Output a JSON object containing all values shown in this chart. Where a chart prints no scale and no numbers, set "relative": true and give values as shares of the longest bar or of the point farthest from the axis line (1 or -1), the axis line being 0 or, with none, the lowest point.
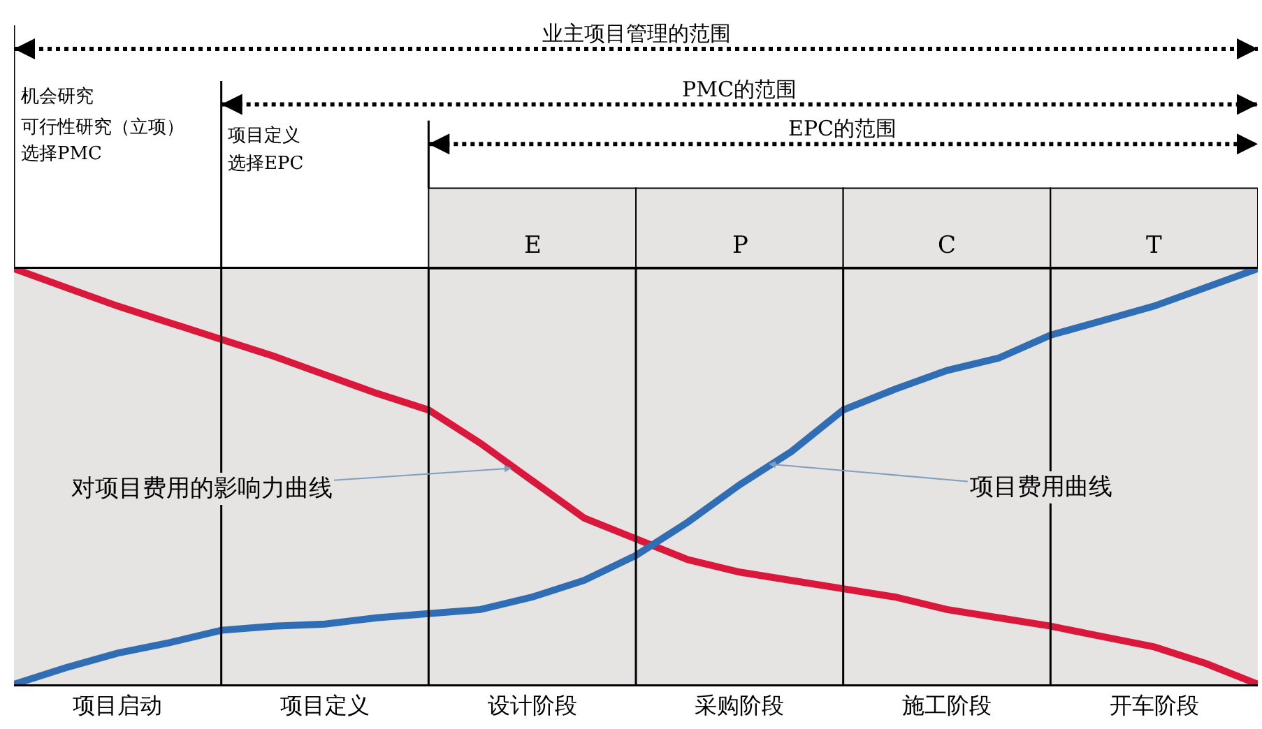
{
  "chart_data": {
    "type": "line",
    "relative": true,
    "grid": "x",
    "marker": "none",
    "line_style": "solid",
    "categories": [
      null,
      null,
      "项目启动",
      null,
      null,
      null,
      "项目定义",
      null,
      null,
      null,
      "设计阶段",
      null,
      null,
      null,
      "采购阶段",
      null,
      null,
      null,
      "施工阶段",
      null,
      null,
      null,
      "开车阶段",
      null,
      null
    ],
    "series": [
      {
        "color": "#d9183b",
        "values": [
          1,
          0.955,
          0.91,
          0.87,
          0.83,
          0.79,
          0.745,
          0.7,
          0.66,
          0.58,
          0.49,
          0.4,
          0.35,
          0.3,
          0.27,
          0.25,
          0.23,
          0.21,
          0.18,
          0.16,
          0.14,
          0.115,
          0.09,
          0.05,
          0
        ]
      },
      {
        "color": "#2f6db5",
        "values": [
          0,
          0.04,
          0.075,
          0.1,
          0.13,
          0.14,
          0.145,
          0.16,
          0.17,
          0.18,
          0.21,
          0.25,
          0.31,
          0.39,
          0.48,
          0.56,
          0.66,
          0.71,
          0.755,
          0.785,
          0.84,
          0.875,
          0.91,
          0.955,
          1
        ]
      }
    ],
    "annotations": [
      "业主项目管理的范围",
      "PMC的范围",
      "EPC的范围",
      "机会研究",
      "可行性研究（立项）",
      "选择PMC",
      "项目定义",
      "选择EPC",
      "E",
      "P",
      "C",
      "T",
      "对项目费用的影响力曲线",
      "项目费用曲线"
    ]
  }
}
